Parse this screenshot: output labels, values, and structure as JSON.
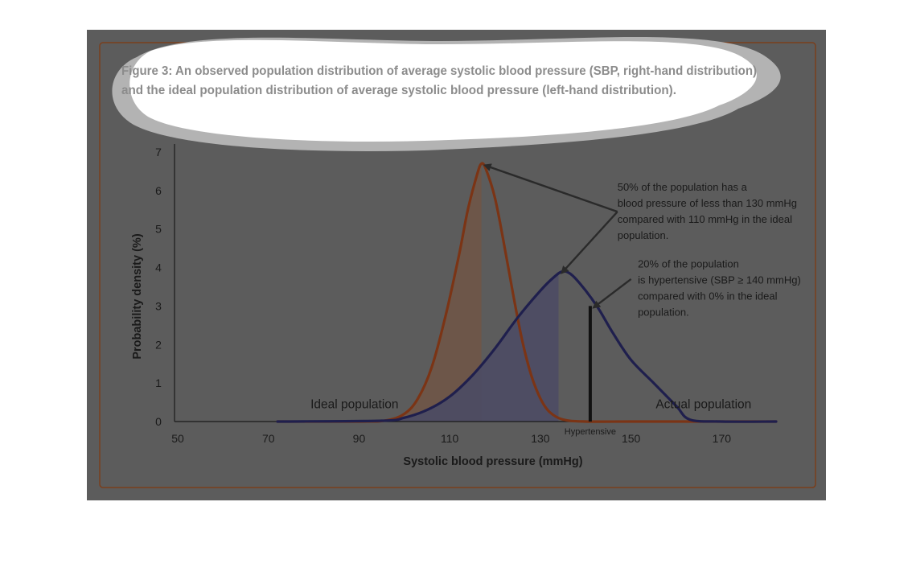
{
  "caption": {
    "line1": "Figure 3: An observed population distribution of average systolic blood pressure (SBP, right-hand distribution)",
    "line2": "and the ideal population distribution of average systolic blood pressure (left-hand distribution)."
  },
  "colors": {
    "frame_background": "#5c5c5c",
    "border": "#7a3e1c",
    "ideal_curve": "#7b3415",
    "actual_curve": "#1f1f4d",
    "ideal_fill": "#6e5548",
    "actual_fill": "#4d4c63",
    "text": "#1a1a1a",
    "callout_background": "#ffffff",
    "callout_shadow": "#b3b3b3"
  },
  "chart_data": {
    "type": "line",
    "xlabel": "Systolic blood pressure (mmHg)",
    "ylabel": "Probability density (%)",
    "xlim": [
      50,
      182
    ],
    "ylim": [
      0,
      7
    ],
    "x_ticks": [
      50,
      70,
      90,
      110,
      130,
      150,
      170
    ],
    "y_ticks": [
      0,
      1,
      2,
      3,
      4,
      5,
      6,
      7
    ],
    "grid": false,
    "series": [
      {
        "name": "Ideal population",
        "role": "ideal",
        "x": [
          72,
          90,
          96,
          100,
          103,
          106,
          109,
          112,
          114,
          116,
          117,
          118,
          120,
          122,
          124,
          126,
          128,
          130,
          132,
          135,
          140,
          150,
          182
        ],
        "values": [
          0,
          0,
          0.03,
          0.2,
          0.6,
          1.4,
          2.7,
          4.3,
          5.5,
          6.4,
          6.7,
          6.55,
          5.8,
          4.6,
          3.3,
          2.1,
          1.2,
          0.6,
          0.25,
          0.05,
          0,
          0,
          0
        ],
        "shaded_until": 117
      },
      {
        "name": "Actual population",
        "role": "actual",
        "x": [
          72,
          95,
          100,
          105,
          110,
          115,
          120,
          125,
          130,
          133,
          135,
          137,
          140,
          143,
          146,
          150,
          155,
          160,
          163,
          170,
          182
        ],
        "values": [
          0,
          0.02,
          0.1,
          0.3,
          0.65,
          1.2,
          1.9,
          2.7,
          3.4,
          3.75,
          3.9,
          3.8,
          3.4,
          2.9,
          2.3,
          1.6,
          1.0,
          0.4,
          0.05,
          0,
          0
        ],
        "shaded_until": 134
      }
    ],
    "curve_labels": [
      {
        "text": "Ideal population",
        "x": 89,
        "y": 0.35
      },
      {
        "text": "Actual population",
        "x": 166,
        "y": 0.35
      }
    ],
    "hypertensive_marker": {
      "x": 141,
      "y_top": 3.0,
      "label": "Hypertensive"
    },
    "annotations": [
      {
        "lines": [
          "50% of the population has a",
          "blood pressure of less than 130 mmHg",
          "compared with 110 mmHg in the ideal",
          "population."
        ],
        "x": 147,
        "y": 6.0,
        "targets": [
          {
            "x": 117,
            "y": 6.7
          },
          {
            "x": 134,
            "y": 3.9
          }
        ],
        "elbow": {
          "x": 147,
          "y": 5.45
        }
      },
      {
        "lines": [
          "20% of the population",
          "is hypertensive (SBP ≥ 140 mmHg)",
          "compared with 0% in the ideal",
          "population."
        ],
        "x": 151.5,
        "y": 4.0,
        "targets": [
          {
            "x": 141,
            "y": 3.0
          }
        ],
        "elbow": {
          "x": 150,
          "y": 3.7
        }
      }
    ]
  }
}
